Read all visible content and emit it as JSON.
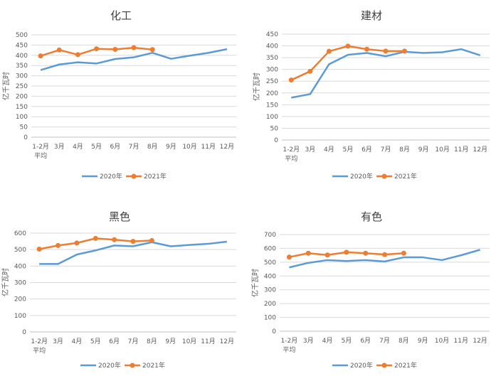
{
  "colors": {
    "s2020": "#5b9bd5",
    "s2021": "#ed7d31",
    "grid": "#d9d9d9",
    "text": "#595959"
  },
  "chart_data": [
    {
      "type": "line",
      "title": "化工",
      "ylabel": "亿千瓦时",
      "ylim": [
        0,
        500
      ],
      "yticks": [
        0,
        50,
        100,
        150,
        200,
        250,
        300,
        350,
        400,
        450,
        500
      ],
      "grid": true,
      "legend": "bottom",
      "categories": [
        "1-2月\n平均",
        "3月",
        "4月",
        "5月",
        "6月",
        "7月",
        "8月",
        "9月",
        "10月",
        "11月",
        "12月"
      ],
      "series": [
        {
          "name": "2020年",
          "values": [
            328,
            355,
            366,
            360,
            382,
            390,
            412,
            383,
            398,
            412,
            430
          ]
        },
        {
          "name": "2021年",
          "values": [
            397,
            426,
            403,
            432,
            429,
            437,
            428,
            null,
            null,
            null,
            null
          ]
        }
      ]
    },
    {
      "type": "line",
      "title": "建材",
      "ylabel": "亿千瓦时",
      "ylim": [
        0,
        450
      ],
      "yticks": [
        0,
        50,
        100,
        150,
        200,
        250,
        300,
        350,
        400,
        450
      ],
      "grid": true,
      "legend": "bottom",
      "categories": [
        "1-2月\n平均",
        "3月",
        "4月",
        "5月",
        "6月",
        "7月",
        "8月",
        "9月",
        "10月",
        "11月",
        "12月"
      ],
      "series": [
        {
          "name": "2020年",
          "values": [
            180,
            195,
            322,
            362,
            370,
            356,
            375,
            370,
            373,
            386,
            360
          ]
        },
        {
          "name": "2021年",
          "values": [
            255,
            292,
            377,
            399,
            386,
            378,
            378,
            null,
            null,
            null,
            null
          ]
        }
      ]
    },
    {
      "type": "line",
      "title": "黑色",
      "ylabel": "亿千瓦时",
      "ylim": [
        0,
        600
      ],
      "yticks": [
        0,
        100,
        200,
        300,
        400,
        500,
        600
      ],
      "grid": true,
      "legend": "bottom",
      "categories": [
        "1-2月\n平均",
        "3月",
        "4月",
        "5月",
        "6月",
        "7月",
        "8月",
        "9月",
        "10月",
        "11月",
        "12月"
      ],
      "series": [
        {
          "name": "2020年",
          "values": [
            413,
            413,
            470,
            495,
            525,
            520,
            545,
            520,
            528,
            535,
            548
          ]
        },
        {
          "name": "2021年",
          "values": [
            503,
            525,
            540,
            568,
            560,
            550,
            555,
            null,
            null,
            null,
            null
          ]
        }
      ]
    },
    {
      "type": "line",
      "title": "有色",
      "ylabel": "亿千瓦时",
      "ylim": [
        0,
        700
      ],
      "yticks": [
        0,
        100,
        200,
        300,
        400,
        500,
        600,
        700
      ],
      "grid": true,
      "legend": "bottom",
      "categories": [
        "1-2月\n平均",
        "3月",
        "4月",
        "5月",
        "6月",
        "7月",
        "8月",
        "9月",
        "10月",
        "11月",
        "12月"
      ],
      "series": [
        {
          "name": "2020年",
          "values": [
            462,
            495,
            515,
            508,
            515,
            505,
            535,
            535,
            515,
            550,
            590
          ]
        },
        {
          "name": "2021年",
          "values": [
            537,
            565,
            552,
            572,
            565,
            555,
            565,
            null,
            null,
            null,
            null
          ]
        }
      ]
    }
  ]
}
